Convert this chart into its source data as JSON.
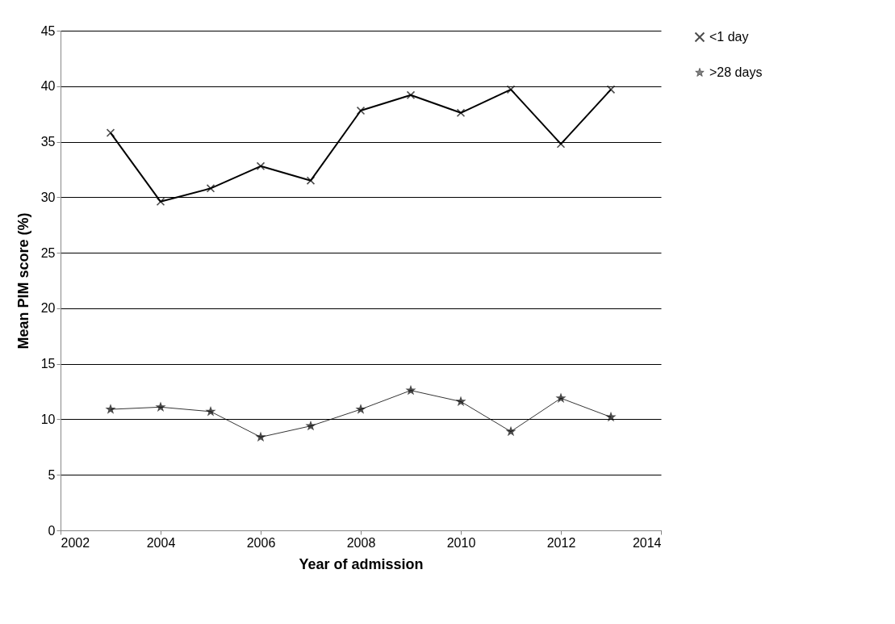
{
  "chart_data": {
    "type": "line",
    "xlabel": "Year of admission",
    "ylabel": "Mean PIM score (%)",
    "x": [
      2003,
      2004,
      2005,
      2006,
      2007,
      2008,
      2009,
      2010,
      2011,
      2012,
      2013
    ],
    "series": [
      {
        "name": "<1 day",
        "color": "#000000",
        "marker": "cross",
        "values": [
          35.8,
          29.6,
          30.8,
          32.8,
          31.5,
          37.8,
          39.2,
          37.6,
          39.7,
          34.8,
          39.7
        ]
      },
      {
        "name": ">28 days",
        "color": "#000000",
        "marker": "star",
        "values": [
          10.9,
          11.1,
          10.7,
          8.4,
          9.4,
          10.9,
          12.6,
          11.6,
          8.9,
          11.9,
          10.2
        ]
      }
    ],
    "xlim": [
      2002,
      2014
    ],
    "xticks": [
      2002,
      2004,
      2006,
      2008,
      2010,
      2012,
      2014
    ],
    "ylim": [
      0,
      45
    ],
    "yticks": [
      0,
      5,
      10,
      15,
      20,
      25,
      30,
      35,
      40,
      45
    ],
    "grid": "y",
    "legend": "right"
  }
}
